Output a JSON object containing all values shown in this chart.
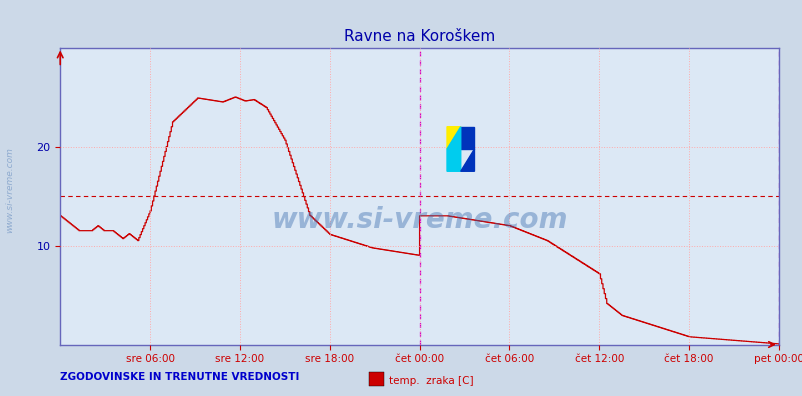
{
  "title": "Ravne na Koroškem",
  "bg_color": "#ccd9e8",
  "plot_bg_color": "#dce8f5",
  "line_color": "#cc0000",
  "grid_color": "#ffaaaa",
  "grid_style": ":",
  "hline_color": "#cc0000",
  "hline_style": "--",
  "hline_y": 15.0,
  "vline_color": "#cc00cc",
  "vline_style": "--",
  "vline_positions": [
    288,
    576
  ],
  "ylabel_color": "#0000aa",
  "xlabel_color": "#0000aa",
  "title_color": "#0000aa",
  "yticks": [
    10,
    20
  ],
  "ymin": 0,
  "ymax": 30,
  "xmin": 0,
  "xmax": 576,
  "xtick_positions": [
    72,
    144,
    216,
    288,
    360,
    432,
    504,
    576
  ],
  "xtick_labels": [
    "sre 06:00",
    "sre 12:00",
    "sre 18:00",
    "čet 00:00",
    "čet 06:00",
    "čet 12:00",
    "čet 18:00",
    "pet 00:00"
  ],
  "watermark_text": "www.si-vreme.com",
  "watermark_color": "#3366aa",
  "watermark_alpha": 0.4,
  "side_text": "www.si-vreme.com",
  "legend_label": "temp.  zraka [C]",
  "legend_color": "#cc0000",
  "bottom_label": "ZGODOVINSKE IN TRENUTNE VREDNOSTI",
  "bottom_label_color": "#0000cc",
  "spine_color": "#6666bb",
  "tick_color": "#cc0000"
}
